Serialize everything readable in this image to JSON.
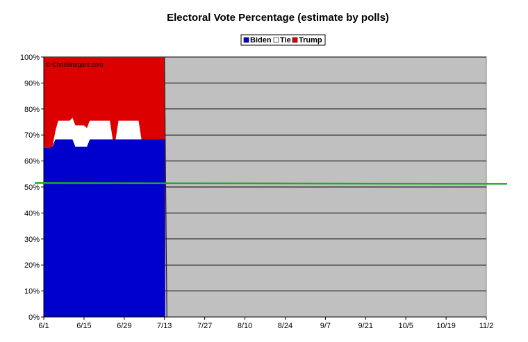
{
  "chart_data": {
    "type": "area",
    "title": "Electoral Vote Percentage (estimate by polls)",
    "watermark": "© ChrisWeigant.com",
    "x_ticks": [
      "6/1",
      "6/15",
      "6/29",
      "7/13",
      "7/27",
      "8/10",
      "8/24",
      "9/7",
      "9/21",
      "10/5",
      "10/19",
      "11/2"
    ],
    "x_range_days": [
      0,
      154
    ],
    "ylim": [
      0,
      100
    ],
    "y_ticks": [
      0,
      10,
      20,
      30,
      40,
      50,
      60,
      70,
      80,
      90,
      100
    ],
    "y_tick_suffix": "%",
    "stacked": true,
    "legend": {
      "position": "top-center",
      "entries": [
        "Biden",
        "Tie",
        "Trump"
      ]
    },
    "colors": {
      "Biden": "#0000cc",
      "Tie": "#ffffff",
      "Trump": "#dd0000",
      "plot_bg": "#c0c0c0",
      "reference_line": "#22aa22"
    },
    "grid": true,
    "reference_line": {
      "y": 51.5
    },
    "x": [
      0,
      1,
      2,
      3,
      4,
      5,
      6,
      7,
      8,
      9,
      10,
      11,
      12,
      13,
      14,
      15,
      16,
      17,
      18,
      19,
      20,
      21,
      22,
      23,
      24,
      25,
      26,
      27,
      28,
      29,
      30,
      31,
      32,
      33,
      34,
      35,
      36,
      37,
      38,
      39,
      40,
      41,
      42
    ],
    "series": [
      {
        "name": "Biden",
        "values": [
          65,
          65,
          65,
          65.5,
          68.3,
          68.3,
          68.3,
          68.3,
          68.3,
          68.3,
          68.3,
          65.5,
          65.5,
          65.5,
          65.5,
          65.5,
          68.3,
          68.3,
          68.3,
          68.3,
          68.3,
          68.3,
          68.3,
          68.3,
          68.3,
          68.3,
          68.3,
          68.3,
          68.3,
          68.3,
          68.3,
          68.3,
          68.3,
          68.3,
          68.3,
          68.3,
          68.3,
          68.3,
          68.3,
          68.3,
          68.3,
          68.3,
          68.3
        ]
      },
      {
        "name": "Tie",
        "values": [
          0,
          0,
          0,
          0,
          3,
          7.2,
          7.2,
          7.2,
          7.2,
          7.2,
          8.3,
          8.2,
          8.2,
          8.2,
          8.2,
          7.2,
          7.2,
          7.2,
          7.2,
          7.2,
          7.2,
          7.2,
          7.2,
          7.2,
          0,
          0,
          7.2,
          7.2,
          7.2,
          7.2,
          7.2,
          7.2,
          7.2,
          7.2,
          0,
          0,
          0,
          0,
          0,
          0,
          0,
          0,
          0
        ]
      },
      {
        "name": "Trump",
        "values": [
          35,
          35,
          35,
          34.5,
          28.7,
          24.5,
          24.5,
          24.5,
          24.5,
          24.5,
          23.4,
          26.3,
          26.3,
          26.3,
          26.3,
          27.3,
          24.5,
          24.5,
          24.5,
          24.5,
          24.5,
          24.5,
          24.5,
          24.5,
          31.7,
          31.7,
          24.5,
          24.5,
          24.5,
          24.5,
          24.5,
          24.5,
          24.5,
          24.5,
          31.7,
          31.7,
          31.7,
          31.7,
          31.7,
          31.7,
          31.7,
          31.7,
          31.7
        ]
      }
    ]
  }
}
